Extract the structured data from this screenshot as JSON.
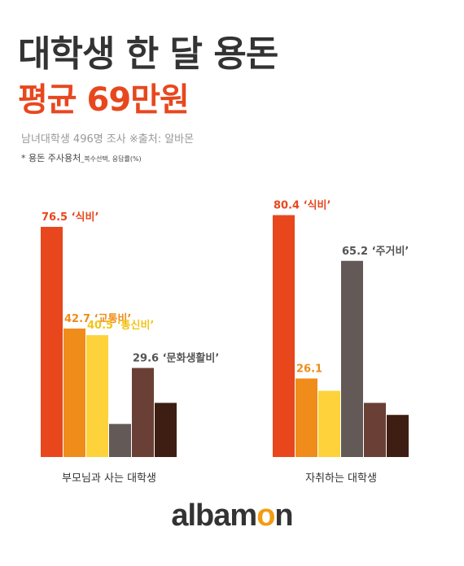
{
  "title_line1": "대학생 한 달 용돈",
  "title_line2": "평균 69만원",
  "survey_info": "남녀대학생 496명 조사 ※출처: 알바몬",
  "note_main": "* 용돈 주사용처",
  "note_sub": "_복수선택, 응답률(%)",
  "logo": {
    "prefix": "albam",
    "o": "o",
    "suffix": "n"
  },
  "colors": {
    "food": "#e8471e",
    "transport": "#f08c1a",
    "telecom": "#fdd23a",
    "housing": "#635a58",
    "culture": "#6a3f36",
    "other": "#3e1e12"
  },
  "chart_data": {
    "type": "bar",
    "ylim": [
      0,
      100
    ],
    "groups": [
      {
        "name": "부모님과 사는 대학생",
        "bars": [
          {
            "value": 76.5,
            "label": "76.5 ‘식비’",
            "color": "food"
          },
          {
            "value": 42.7,
            "label": "42.7 ‘교통비’",
            "color": "transport"
          },
          {
            "value": 40.5,
            "label": "40.5 ‘통신비’",
            "color": "telecom"
          },
          {
            "value": 11.0,
            "label": "",
            "color": "housing"
          },
          {
            "value": 29.6,
            "label": "29.6 ‘문화생활비’",
            "color": "culture"
          },
          {
            "value": 18.0,
            "label": "",
            "color": "other"
          }
        ]
      },
      {
        "name": "자취하는 대학생",
        "bars": [
          {
            "value": 80.4,
            "label": "80.4 ‘식비’",
            "color": "food"
          },
          {
            "value": 26.1,
            "label": "26.1",
            "color": "transport"
          },
          {
            "value": 22.0,
            "label": "",
            "color": "telecom"
          },
          {
            "value": 65.2,
            "label": "65.2 ‘주거비’",
            "color": "housing"
          },
          {
            "value": 18.0,
            "label": "",
            "color": "culture"
          },
          {
            "value": 14.0,
            "label": "",
            "color": "other"
          }
        ]
      }
    ]
  }
}
